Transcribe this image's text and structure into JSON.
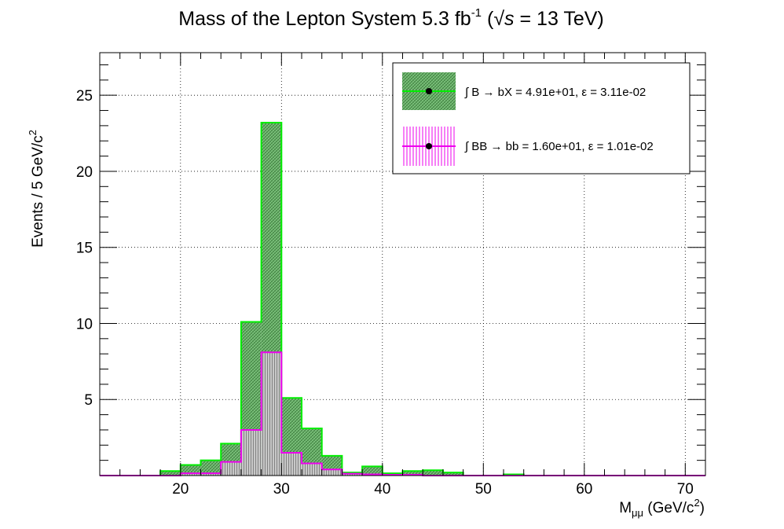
{
  "chart_data": {
    "type": "bar",
    "title": {
      "main": "Mass of the Lepton System 5.3 fb",
      "exp": "-1",
      "open": " (",
      "sqrt": "√",
      "s": "s",
      "rest": " = 13 TeV)"
    },
    "xlabel": {
      "main": "M",
      "sub": "μμ",
      "mid": " (GeV/c",
      "sup": "2",
      "end": ")"
    },
    "ylabel": {
      "main": "Events / 5 GeV/c",
      "sup": "2"
    },
    "xlim": [
      12,
      72
    ],
    "ylim": [
      0,
      27.8
    ],
    "xticks": [
      20,
      30,
      40,
      50,
      60,
      70
    ],
    "yticks": [
      5,
      10,
      15,
      20,
      25
    ],
    "grid": true,
    "legend_position": "top-right",
    "bin_width": 2,
    "bin_edges": [
      12,
      14,
      16,
      18,
      20,
      22,
      24,
      26,
      28,
      30,
      32,
      34,
      36,
      38,
      40,
      42,
      44,
      46,
      48,
      50,
      52,
      54,
      56,
      58,
      60,
      62,
      64,
      66,
      68,
      70,
      72
    ],
    "series": [
      {
        "name": "∫ B → bX = 4.91e+01, ε = 3.11e-02",
        "color": "#00ee00",
        "fill": "#60a060",
        "values": [
          0,
          0,
          0,
          0.3,
          0.7,
          1.0,
          2.1,
          10.1,
          23.2,
          5.1,
          3.1,
          1.3,
          0.2,
          0.6,
          0.15,
          0.3,
          0.35,
          0.2,
          0,
          0,
          0.08,
          0,
          0,
          0,
          0,
          0,
          0,
          0,
          0,
          0
        ]
      },
      {
        "name": "∫ BB → bb = 1.60e+01, ε = 1.01e-02",
        "color": "#ee00ee",
        "fill": "#a0a0a0",
        "values": [
          0,
          0,
          0,
          0,
          0.15,
          0.15,
          0.9,
          3.0,
          8.1,
          1.5,
          0.8,
          0.4,
          0.12,
          0.08,
          0.05,
          0.05,
          0,
          0,
          0,
          0,
          0,
          0,
          0,
          0,
          0,
          0,
          0,
          0,
          0,
          0
        ]
      }
    ]
  }
}
